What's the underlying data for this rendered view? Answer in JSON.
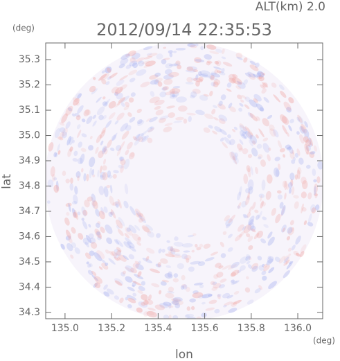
{
  "chart_data": {
    "type": "radar-map",
    "title": "2012/09/14 22:35:53",
    "annotation": "ALT(km) 2.0",
    "xlabel": "lon",
    "ylabel": "lat",
    "xunit": "(deg)",
    "yunit": "(deg)",
    "xlim": [
      134.917,
      136.107
    ],
    "ylim": [
      34.275,
      35.366
    ],
    "xticks": [
      {
        "value": 135,
        "label": "135.0"
      },
      135.2,
      135.4,
      135.6,
      135.8,
      {
        "value": 136,
        "label": "136.0"
      }
    ],
    "yticks": [
      34.3,
      34.4,
      34.5,
      34.6,
      34.7,
      34.8,
      34.9,
      {
        "value": 35,
        "label": "35.0"
      },
      35.1,
      35.2,
      35.3
    ]
  }
}
